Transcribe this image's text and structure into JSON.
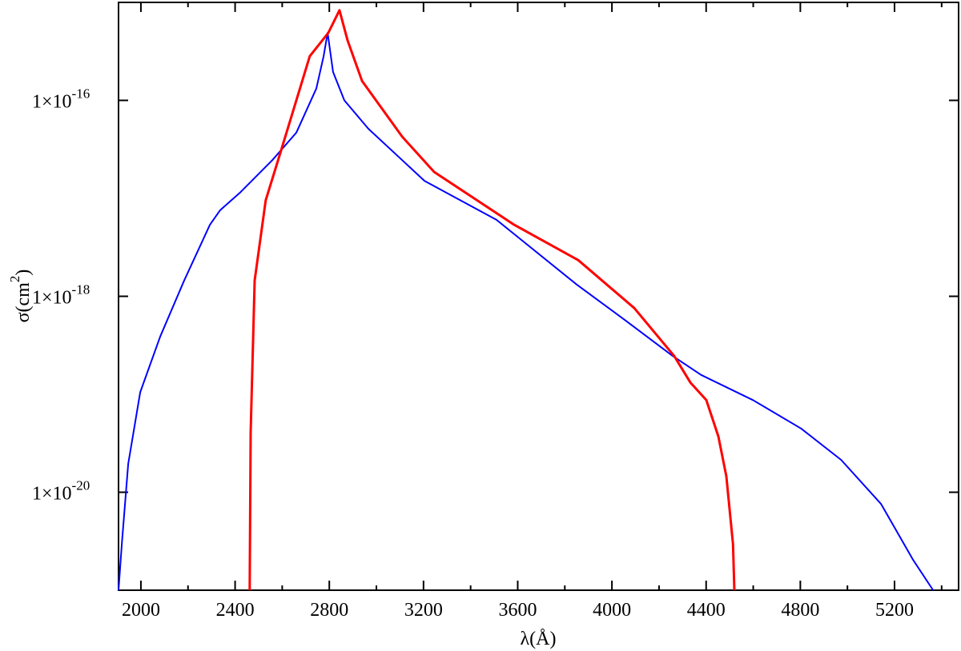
{
  "chart_data": {
    "type": "line",
    "xlabel": "λ(Å)",
    "ylabel": [
      {
        "text": "σ(cm"
      },
      {
        "text": "2",
        "sup": true
      },
      {
        "text": ")"
      }
    ],
    "xlim": [
      1905,
      5472
    ],
    "ylim": [
      1e-21,
      1e-15
    ],
    "log_y": true,
    "xticks": [
      2000,
      2400,
      2800,
      3200,
      3600,
      4000,
      4400,
      4800,
      5200
    ],
    "xminorticks": [
      2200,
      2600,
      3000,
      3400,
      3800,
      4200,
      4600,
      5000,
      5400
    ],
    "yticks": [
      {
        "value": 1e-16,
        "label": "1×10",
        "exponent": "-16"
      },
      {
        "value": 1e-18,
        "label": "1×10",
        "exponent": "-18"
      },
      {
        "value": 1e-20,
        "label": "1×10",
        "exponent": "-20"
      }
    ],
    "series": [
      {
        "color": "#0000ff",
        "width": 2,
        "x": [
          1905,
          1919,
          1946,
          1997,
          2082,
          2184,
          2293,
          2337,
          2422,
          2558,
          2660,
          2745,
          2776,
          2793,
          2816,
          2864,
          2966,
          3204,
          3510,
          3850,
          4054,
          4259,
          4378,
          4599,
          4803,
          4973,
          5143,
          5279,
          5364
        ],
        "values": [
          1e-21,
          2.95e-21,
          1.95e-20,
          1.05e-19,
          3.89e-19,
          1.45e-18,
          5.37e-18,
          7.59e-18,
          1.15e-17,
          2.45e-17,
          4.68e-17,
          1.32e-16,
          2.82e-16,
          4.9e-16,
          1.95e-16,
          1e-16,
          5.13e-17,
          1.51e-17,
          6.03e-18,
          1.32e-18,
          5.75e-19,
          2.45e-19,
          1.58e-19,
          8.71e-20,
          4.47e-20,
          2.14e-20,
          7.59e-21,
          2.04e-21,
          1e-21
        ]
      },
      {
        "color": "#ff0000",
        "width": 3,
        "x": [
          2462,
          2466,
          2483,
          2530,
          2598,
          2717,
          2796,
          2843,
          2878,
          2939,
          3109,
          3245,
          3585,
          3857,
          4095,
          4265,
          4333,
          4401,
          4452,
          4486,
          4514,
          4520
        ],
        "values": [
          1e-21,
          4.07e-20,
          1.45e-18,
          9.55e-18,
          3.24e-17,
          2.82e-16,
          4.9e-16,
          8.32e-16,
          4.07e-16,
          1.58e-16,
          4.27e-17,
          1.86e-17,
          5.37e-18,
          2.34e-18,
          7.59e-19,
          2.45e-19,
          1.32e-19,
          8.71e-20,
          3.72e-20,
          1.45e-20,
          2.95e-21,
          1e-21
        ]
      }
    ]
  }
}
